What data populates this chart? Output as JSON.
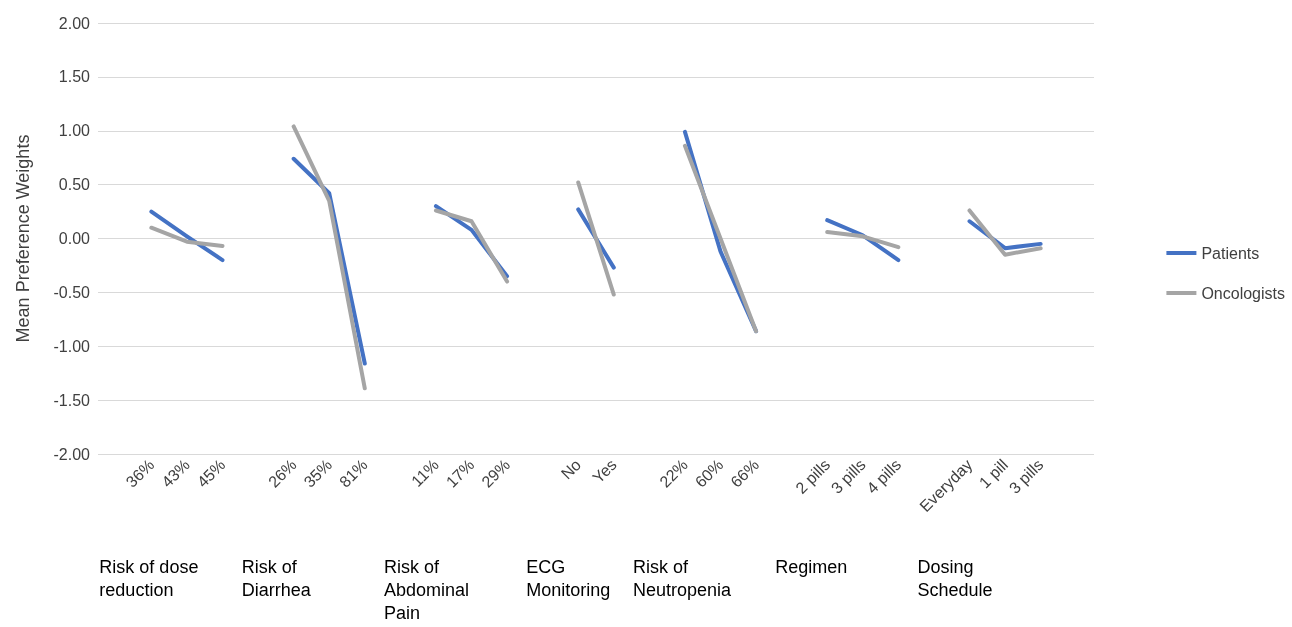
{
  "chart_data": {
    "type": "line",
    "ylabel": "Mean Preference Weights",
    "categories": [
      null,
      "36%",
      "43%",
      "45%",
      null,
      "26%",
      "35%",
      "81%",
      null,
      "11%",
      "17%",
      "29%",
      null,
      "No",
      "Yes",
      null,
      "22%",
      "60%",
      "66%",
      null,
      "2 pills",
      "3 pills",
      "4 pills",
      null,
      "Everyday",
      "1 pill",
      "3 pills",
      null
    ],
    "series": [
      {
        "name": "Patients",
        "color": "#4472c4",
        "values": [
          null,
          0.25,
          0.02,
          -0.2,
          null,
          0.74,
          0.42,
          -1.16,
          null,
          0.3,
          0.08,
          -0.35,
          null,
          0.27,
          -0.27,
          null,
          0.99,
          -0.12,
          -0.86,
          null,
          0.17,
          0.03,
          -0.2,
          null,
          0.16,
          -0.09,
          -0.05,
          null
        ]
      },
      {
        "name": "Oncologists",
        "color": "#a5a5a5",
        "values": [
          null,
          0.1,
          -0.03,
          -0.07,
          null,
          1.04,
          0.35,
          -1.39,
          null,
          0.26,
          0.16,
          -0.4,
          null,
          0.52,
          -0.52,
          null,
          0.86,
          0.0,
          -0.86,
          null,
          0.06,
          0.02,
          -0.08,
          null,
          0.26,
          -0.15,
          -0.09,
          null
        ]
      }
    ],
    "annotations": [
      "Risk of dose reduction",
      "Risk of Diarrhea",
      "Risk of Abdominal Pain",
      "ECG Monitoring",
      "Risk of Neutropenia",
      "Regimen",
      "Dosing Schedule"
    ],
    "ylim": [
      -2,
      2
    ],
    "yticks": [
      {
        "value": -2,
        "label": "-2.00"
      },
      {
        "value": -1.5,
        "label": "-1.50"
      },
      {
        "value": -1,
        "label": "-1.00"
      },
      {
        "value": -0.5,
        "label": "-0.50"
      },
      {
        "value": 0,
        "label": "0.00"
      },
      {
        "value": 0.5,
        "label": "0.50"
      },
      {
        "value": 1,
        "label": "1.00"
      },
      {
        "value": 1.5,
        "label": "1.50"
      },
      {
        "value": 2,
        "label": "2.00"
      }
    ],
    "grid": "y",
    "legend": "right",
    "marker": "none",
    "line_style": "solid"
  }
}
